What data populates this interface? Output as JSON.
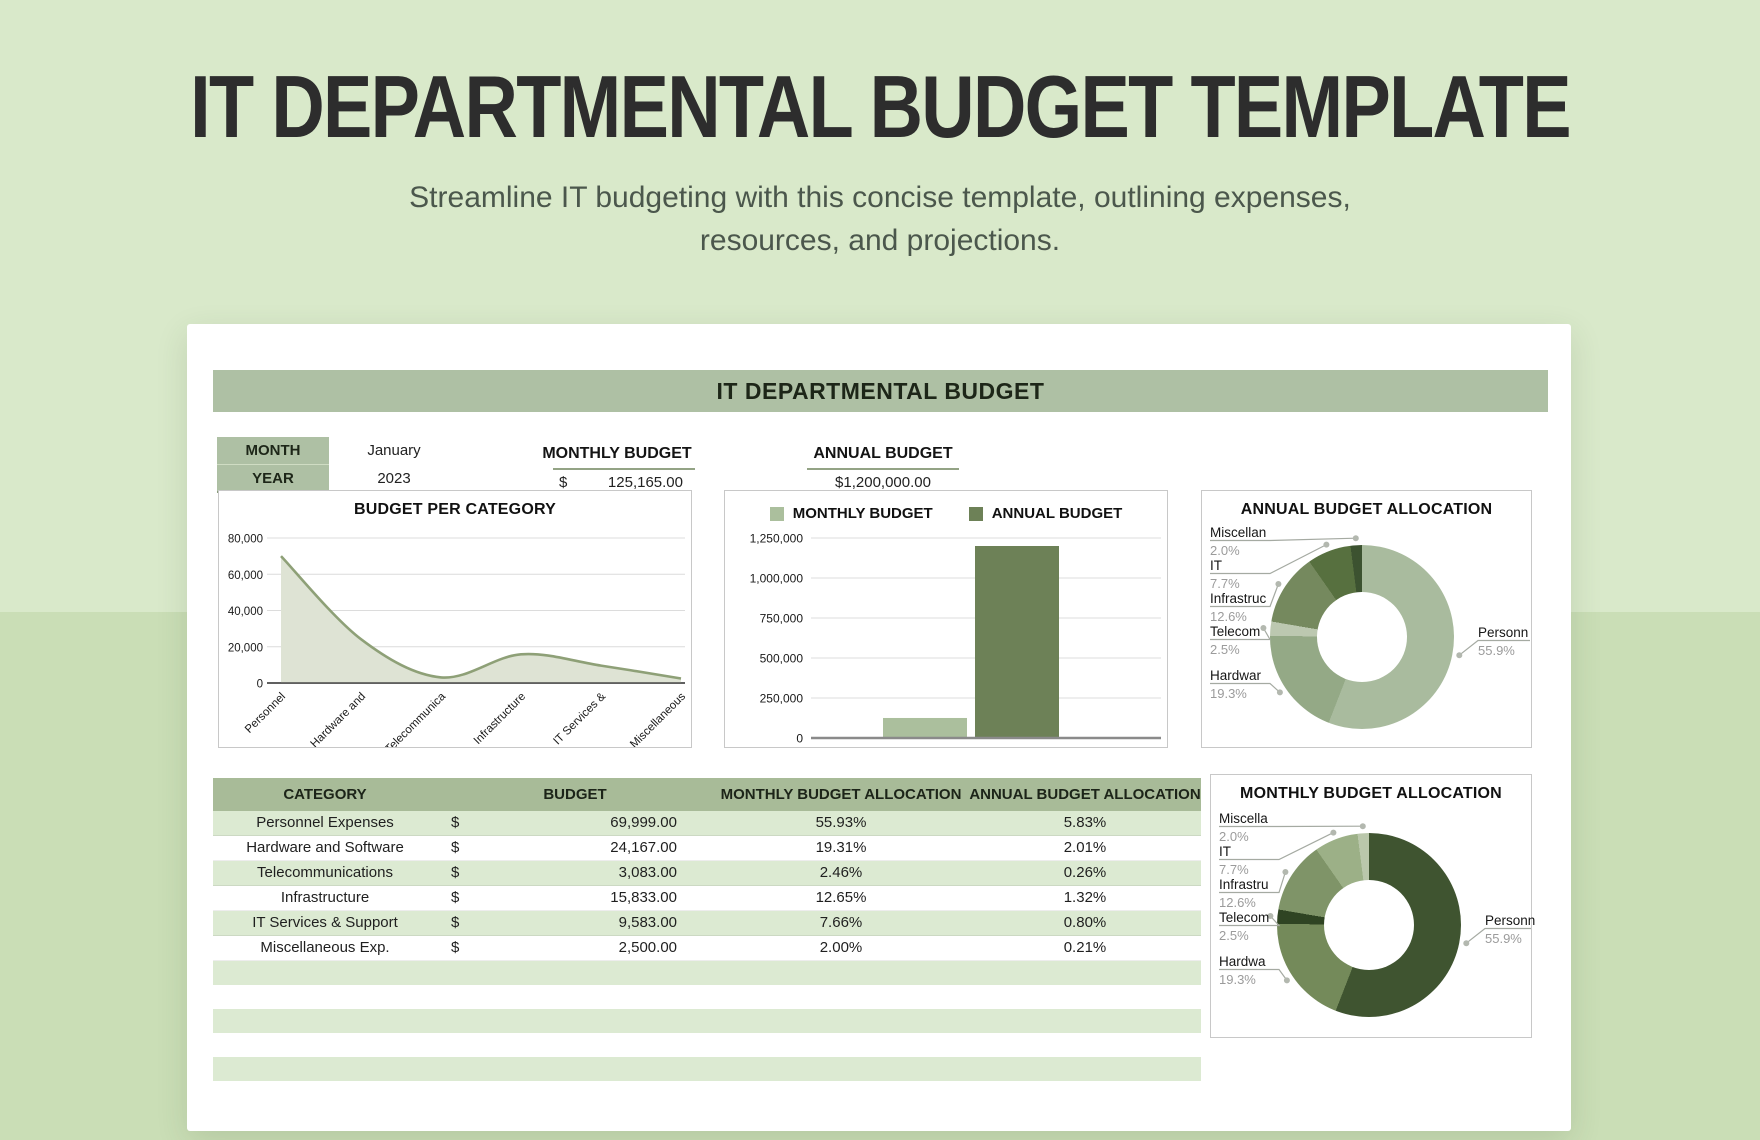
{
  "page": {
    "title": "IT DEPARTMENTAL BUDGET TEMPLATE",
    "subtitle_line1": "Streamline IT budgeting with this concise template, outlining expenses,",
    "subtitle_line2": "resources, and projections."
  },
  "colors": {
    "page_bg_top": "#d9e9ca",
    "page_bg_bottom": "#cadeb6",
    "sage_header": "#aec0a4",
    "table_header": "#a8bb98",
    "row_stripe": "#dcead2"
  },
  "sheet": {
    "title": "IT DEPARTMENTAL BUDGET",
    "month_label": "MONTH",
    "month_value": "January",
    "year_label": "YEAR",
    "year_value": "2023",
    "monthly_budget_label": "MONTHLY BUDGET",
    "monthly_budget_currency": "$",
    "monthly_budget_value": "125,165.00",
    "annual_budget_label": "ANNUAL BUDGET",
    "annual_budget_value": "$1,200,000.00"
  },
  "table": {
    "headers": [
      "CATEGORY",
      "BUDGET",
      "MONTHLY BUDGET ALLOCATION",
      "ANNUAL BUDGET ALLOCATION"
    ],
    "rows": [
      {
        "category": "Personnel Expenses",
        "currency": "$",
        "budget": "69,999.00",
        "monthly_allocation": "55.93%",
        "annual_allocation": "5.83%"
      },
      {
        "category": "Hardware and Software",
        "currency": "$",
        "budget": "24,167.00",
        "monthly_allocation": "19.31%",
        "annual_allocation": "2.01%"
      },
      {
        "category": "Telecommunications",
        "currency": "$",
        "budget": "3,083.00",
        "monthly_allocation": "2.46%",
        "annual_allocation": "0.26%"
      },
      {
        "category": "Infrastructure",
        "currency": "$",
        "budget": "15,833.00",
        "monthly_allocation": "12.65%",
        "annual_allocation": "1.32%"
      },
      {
        "category": "IT Services & Support",
        "currency": "$",
        "budget": "9,583.00",
        "monthly_allocation": "7.66%",
        "annual_allocation": "0.80%"
      },
      {
        "category": "Miscellaneous Exp.",
        "currency": "$",
        "budget": "2,500.00",
        "monthly_allocation": "2.00%",
        "annual_allocation": "0.21%"
      }
    ],
    "empty_rows": 5
  },
  "chart_data": [
    {
      "type": "area",
      "title": "BUDGET PER CATEGORY",
      "categories": [
        "Personnel",
        "Hardware and",
        "Telecommunica",
        "Infrastructure",
        "IT Services &",
        "Miscellaneous"
      ],
      "values": [
        69999,
        24167,
        3083,
        15833,
        9583,
        2500
      ],
      "ylim": [
        0,
        80000
      ],
      "yticks": [
        {
          "value": 0,
          "label": "0"
        },
        {
          "value": 20000,
          "label": "20,000"
        },
        {
          "value": 40000,
          "label": "40,000"
        },
        {
          "value": 60000,
          "label": "60,000"
        },
        {
          "value": 80000,
          "label": "80,000"
        }
      ],
      "grid": true,
      "legend_position": "none",
      "fill": "#dee3d4",
      "stroke": "#8ea077"
    },
    {
      "type": "bar",
      "title": "",
      "legend_position": "top",
      "series": [
        {
          "name": "MONTHLY BUDGET",
          "value": 125165,
          "color": "#abbf9d"
        },
        {
          "name": "ANNUAL BUDGET",
          "value": 1200000,
          "color": "#6d8157"
        }
      ],
      "ylim": [
        0,
        1250000
      ],
      "yticks": [
        {
          "value": 0,
          "label": "0"
        },
        {
          "value": 250000,
          "label": "250,000"
        },
        {
          "value": 500000,
          "label": "500,000"
        },
        {
          "value": 750000,
          "label": "750,000"
        },
        {
          "value": 1000000,
          "label": "1,000,000"
        },
        {
          "value": 1250000,
          "label": "1,250,000"
        }
      ],
      "grid": true
    },
    {
      "type": "pie",
      "subtype": "donut",
      "title": "ANNUAL BUDGET ALLOCATION",
      "segments": [
        {
          "label": "Personn",
          "pct_label": "55.9%",
          "value": 55.9,
          "color": "#a9bb9e",
          "side": "right"
        },
        {
          "label": "Hardwar",
          "pct_label": "19.3%",
          "value": 19.3,
          "color": "#94a986",
          "side": "left"
        },
        {
          "label": "Telecom",
          "pct_label": "2.5%",
          "value": 2.5,
          "color": "#bcc8b0",
          "side": "left"
        },
        {
          "label": "Infrastruc",
          "pct_label": "12.6%",
          "value": 12.6,
          "color": "#75895e",
          "side": "left"
        },
        {
          "label": "IT",
          "pct_label": "7.7%",
          "value": 7.7,
          "color": "#57703f",
          "side": "left"
        },
        {
          "label": "Miscellan",
          "pct_label": "2.0%",
          "value": 2.0,
          "color": "#3c5230",
          "side": "left"
        }
      ]
    },
    {
      "type": "pie",
      "subtype": "donut",
      "title": "MONTHLY BUDGET ALLOCATION",
      "segments": [
        {
          "label": "Personn",
          "pct_label": "55.9%",
          "value": 55.9,
          "color": "#3f5430",
          "side": "right"
        },
        {
          "label": "Hardwa",
          "pct_label": "19.3%",
          "value": 19.3,
          "color": "#748a5a",
          "side": "left"
        },
        {
          "label": "Telecom",
          "pct_label": "2.5%",
          "value": 2.5,
          "color": "#2f4423",
          "side": "left"
        },
        {
          "label": "Infrastru",
          "pct_label": "12.6%",
          "value": 12.6,
          "color": "#7f9468",
          "side": "left"
        },
        {
          "label": "IT",
          "pct_label": "7.7%",
          "value": 7.7,
          "color": "#9cb087",
          "side": "left"
        },
        {
          "label": "Miscella",
          "pct_label": "2.0%",
          "value": 2.0,
          "color": "#bac7ab",
          "side": "left"
        }
      ]
    }
  ]
}
